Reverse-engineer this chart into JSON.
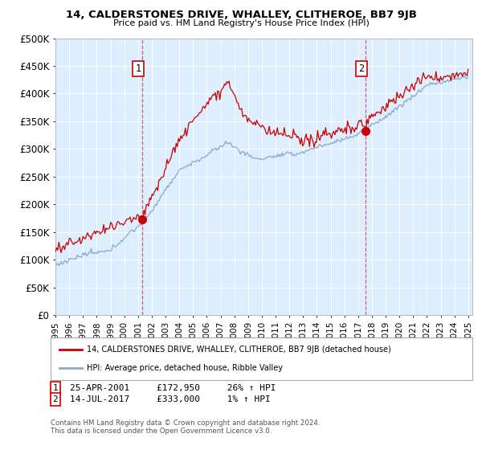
{
  "title": "14, CALDERSTONES DRIVE, WHALLEY, CLITHEROE, BB7 9JB",
  "subtitle": "Price paid vs. HM Land Registry's House Price Index (HPI)",
  "legend_label_red": "14, CALDERSTONES DRIVE, WHALLEY, CLITHEROE, BB7 9JB (detached house)",
  "legend_label_blue": "HPI: Average price, detached house, Ribble Valley",
  "annotation1_text": "25-APR-2001     £172,950     26% ↑ HPI",
  "annotation2_text": "14-JUL-2017     £333,000     1% ↑ HPI",
  "footer": "Contains HM Land Registry data © Crown copyright and database right 2024.\nThis data is licensed under the Open Government Licence v3.0.",
  "ylim": [
    0,
    500000
  ],
  "yticks": [
    0,
    50000,
    100000,
    150000,
    200000,
    250000,
    300000,
    350000,
    400000,
    450000,
    500000
  ],
  "plot_bg": "#ddeeff",
  "red_color": "#cc0000",
  "blue_color": "#88aacc",
  "marker1_year": 2001.32,
  "marker1_price": 172950,
  "marker2_year": 2017.54,
  "marker2_price": 333000,
  "xlim_start": 1995.0,
  "xlim_end": 2025.3
}
